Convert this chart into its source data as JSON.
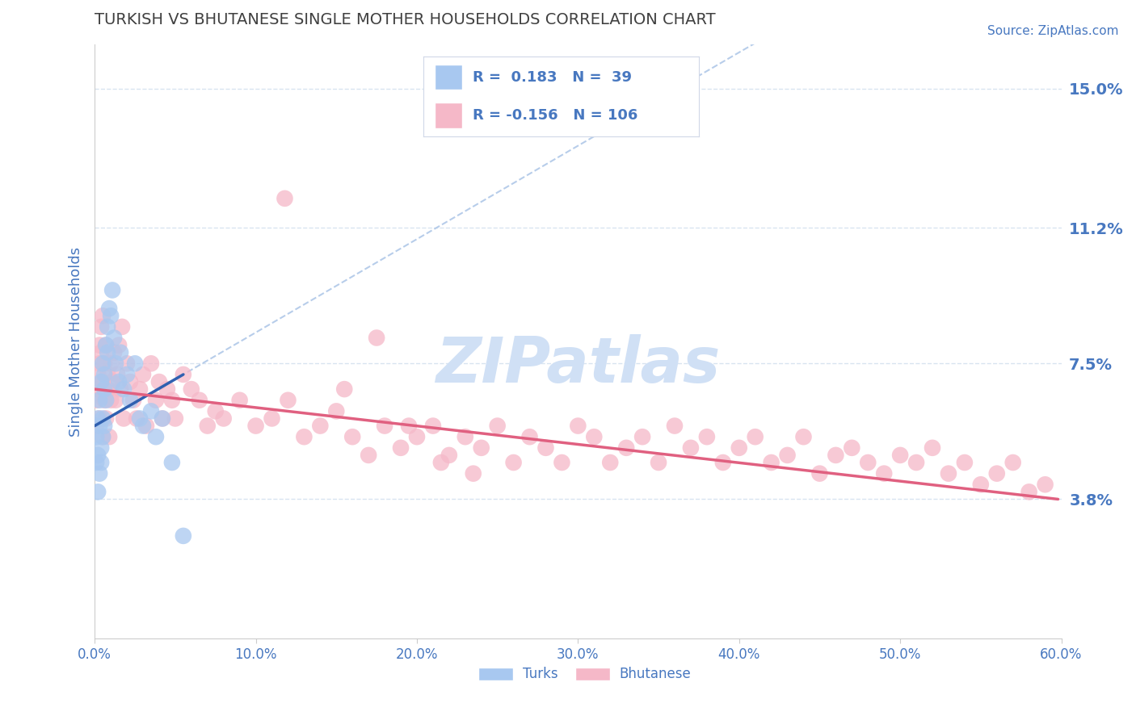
{
  "title": "TURKISH VS BHUTANESE SINGLE MOTHER HOUSEHOLDS CORRELATION CHART",
  "source_text": "Source: ZipAtlas.com",
  "ylabel": "Single Mother Households",
  "xlim": [
    0.0,
    0.6
  ],
  "ylim": [
    0.0,
    0.162
  ],
  "yticks": [
    0.038,
    0.075,
    0.112,
    0.15
  ],
  "ytick_labels": [
    "3.8%",
    "7.5%",
    "11.2%",
    "15.0%"
  ],
  "xticks": [
    0.0,
    0.1,
    0.2,
    0.3,
    0.4,
    0.5,
    0.6
  ],
  "xtick_labels": [
    "0.0%",
    "10.0%",
    "20.0%",
    "30.0%",
    "40.0%",
    "50.0%",
    "60.0%"
  ],
  "turks_R": 0.183,
  "turks_N": 39,
  "bhutanese_R": -0.156,
  "bhutanese_N": 106,
  "turks_color": "#a8c8f0",
  "bhutanese_color": "#f5b8c8",
  "trendline_turks_color": "#3060b0",
  "trendline_bhutanese_color": "#e06080",
  "dashed_line_color": "#b0c8e8",
  "title_color": "#404040",
  "axis_label_color": "#4878c0",
  "tick_label_color": "#4878c0",
  "watermark_color": "#d0e0f5",
  "background_color": "#ffffff",
  "grid_color": "#d8e4f0",
  "turks_x": [
    0.001,
    0.001,
    0.002,
    0.002,
    0.002,
    0.003,
    0.003,
    0.003,
    0.004,
    0.004,
    0.004,
    0.005,
    0.005,
    0.005,
    0.006,
    0.006,
    0.006,
    0.007,
    0.007,
    0.008,
    0.008,
    0.009,
    0.01,
    0.011,
    0.012,
    0.013,
    0.015,
    0.016,
    0.018,
    0.02,
    0.022,
    0.025,
    0.028,
    0.03,
    0.035,
    0.038,
    0.042,
    0.048,
    0.055
  ],
  "turks_y": [
    0.055,
    0.048,
    0.06,
    0.05,
    0.04,
    0.065,
    0.058,
    0.045,
    0.07,
    0.052,
    0.048,
    0.075,
    0.06,
    0.055,
    0.072,
    0.068,
    0.058,
    0.08,
    0.065,
    0.085,
    0.078,
    0.09,
    0.088,
    0.095,
    0.082,
    0.075,
    0.07,
    0.078,
    0.068,
    0.072,
    0.065,
    0.075,
    0.06,
    0.058,
    0.062,
    0.055,
    0.06,
    0.048,
    0.028
  ],
  "bhutanese_x": [
    0.001,
    0.001,
    0.002,
    0.002,
    0.003,
    0.003,
    0.003,
    0.004,
    0.004,
    0.005,
    0.005,
    0.005,
    0.006,
    0.006,
    0.007,
    0.007,
    0.008,
    0.008,
    0.009,
    0.01,
    0.01,
    0.011,
    0.012,
    0.013,
    0.014,
    0.015,
    0.016,
    0.017,
    0.018,
    0.02,
    0.022,
    0.024,
    0.026,
    0.028,
    0.03,
    0.032,
    0.035,
    0.038,
    0.04,
    0.042,
    0.045,
    0.048,
    0.05,
    0.055,
    0.06,
    0.065,
    0.07,
    0.075,
    0.08,
    0.09,
    0.1,
    0.11,
    0.12,
    0.13,
    0.14,
    0.15,
    0.16,
    0.17,
    0.18,
    0.19,
    0.2,
    0.21,
    0.22,
    0.23,
    0.24,
    0.25,
    0.26,
    0.27,
    0.28,
    0.29,
    0.3,
    0.31,
    0.32,
    0.33,
    0.34,
    0.35,
    0.36,
    0.37,
    0.38,
    0.39,
    0.4,
    0.41,
    0.42,
    0.43,
    0.44,
    0.45,
    0.46,
    0.47,
    0.48,
    0.49,
    0.5,
    0.51,
    0.52,
    0.53,
    0.54,
    0.55,
    0.56,
    0.57,
    0.58,
    0.59,
    0.118,
    0.155,
    0.175,
    0.195,
    0.215,
    0.235
  ],
  "bhutanese_y": [
    0.058,
    0.065,
    0.072,
    0.068,
    0.08,
    0.075,
    0.06,
    0.085,
    0.078,
    0.088,
    0.07,
    0.055,
    0.075,
    0.065,
    0.08,
    0.06,
    0.072,
    0.068,
    0.055,
    0.075,
    0.065,
    0.07,
    0.078,
    0.065,
    0.072,
    0.08,
    0.068,
    0.085,
    0.06,
    0.075,
    0.07,
    0.065,
    0.06,
    0.068,
    0.072,
    0.058,
    0.075,
    0.065,
    0.07,
    0.06,
    0.068,
    0.065,
    0.06,
    0.072,
    0.068,
    0.065,
    0.058,
    0.062,
    0.06,
    0.065,
    0.058,
    0.06,
    0.065,
    0.055,
    0.058,
    0.062,
    0.055,
    0.05,
    0.058,
    0.052,
    0.055,
    0.058,
    0.05,
    0.055,
    0.052,
    0.058,
    0.048,
    0.055,
    0.052,
    0.048,
    0.058,
    0.055,
    0.048,
    0.052,
    0.055,
    0.048,
    0.058,
    0.052,
    0.055,
    0.048,
    0.052,
    0.055,
    0.048,
    0.05,
    0.055,
    0.045,
    0.05,
    0.052,
    0.048,
    0.045,
    0.05,
    0.048,
    0.052,
    0.045,
    0.048,
    0.042,
    0.045,
    0.048,
    0.04,
    0.042,
    0.12,
    0.068,
    0.082,
    0.058,
    0.048,
    0.045
  ],
  "turks_trendline_x": [
    0.0,
    0.055
  ],
  "turks_trendline_y_start": 0.058,
  "turks_trendline_y_end": 0.072,
  "bhutanese_trendline_x": [
    0.0,
    0.598
  ],
  "bhutanese_trendline_y_start": 0.068,
  "bhutanese_trendline_y_end": 0.038
}
